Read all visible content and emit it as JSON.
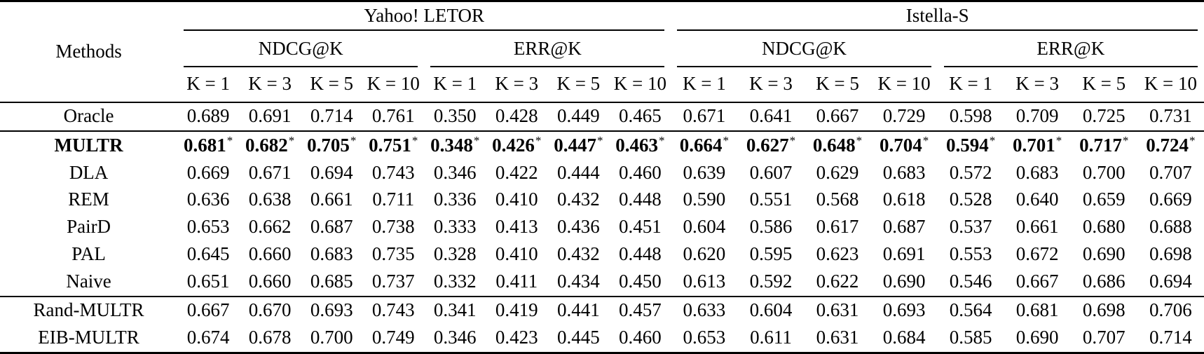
{
  "page": {
    "background_color": "#ffffff",
    "text_color": "#000000"
  },
  "table": {
    "corner_header": "Methods",
    "dataset_groups": [
      {
        "label": "Yahoo! LETOR",
        "metrics": [
          "NDCG@K",
          "ERR@K"
        ]
      },
      {
        "label": "Istella-S",
        "metrics": [
          "NDCG@K",
          "ERR@K"
        ]
      }
    ],
    "k_labels": [
      "K = 1",
      "K = 3",
      "K = 5",
      "K = 10"
    ],
    "rows": [
      {
        "method": "Oracle",
        "bold": false,
        "rule_after": true,
        "values": [
          "0.689",
          "0.691",
          "0.714",
          "0.761",
          "0.350",
          "0.428",
          "0.449",
          "0.465",
          "0.671",
          "0.641",
          "0.667",
          "0.729",
          "0.598",
          "0.709",
          "0.725",
          "0.731"
        ]
      },
      {
        "method": "MULTR",
        "bold": true,
        "rule_after": false,
        "mark": "*",
        "values": [
          "0.681",
          "0.682",
          "0.705",
          "0.751",
          "0.348",
          "0.426",
          "0.447",
          "0.463",
          "0.664",
          "0.627",
          "0.648",
          "0.704",
          "0.594",
          "0.701",
          "0.717",
          "0.724"
        ]
      },
      {
        "method": "DLA",
        "bold": false,
        "rule_after": false,
        "values": [
          "0.669",
          "0.671",
          "0.694",
          "0.743",
          "0.346",
          "0.422",
          "0.444",
          "0.460",
          "0.639",
          "0.607",
          "0.629",
          "0.683",
          "0.572",
          "0.683",
          "0.700",
          "0.707"
        ]
      },
      {
        "method": "REM",
        "bold": false,
        "rule_after": false,
        "values": [
          "0.636",
          "0.638",
          "0.661",
          "0.711",
          "0.336",
          "0.410",
          "0.432",
          "0.448",
          "0.590",
          "0.551",
          "0.568",
          "0.618",
          "0.528",
          "0.640",
          "0.659",
          "0.669"
        ]
      },
      {
        "method": "PairD",
        "bold": false,
        "rule_after": false,
        "values": [
          "0.653",
          "0.662",
          "0.687",
          "0.738",
          "0.333",
          "0.413",
          "0.436",
          "0.451",
          "0.604",
          "0.586",
          "0.617",
          "0.687",
          "0.537",
          "0.661",
          "0.680",
          "0.688"
        ]
      },
      {
        "method": "PAL",
        "bold": false,
        "rule_after": false,
        "values": [
          "0.645",
          "0.660",
          "0.683",
          "0.735",
          "0.328",
          "0.410",
          "0.432",
          "0.448",
          "0.620",
          "0.595",
          "0.623",
          "0.691",
          "0.553",
          "0.672",
          "0.690",
          "0.698"
        ]
      },
      {
        "method": "Naive",
        "bold": false,
        "rule_after": true,
        "values": [
          "0.651",
          "0.660",
          "0.685",
          "0.737",
          "0.332",
          "0.411",
          "0.434",
          "0.450",
          "0.613",
          "0.592",
          "0.622",
          "0.690",
          "0.546",
          "0.667",
          "0.686",
          "0.694"
        ]
      },
      {
        "method": "Rand-MULTR",
        "bold": false,
        "rule_after": false,
        "values": [
          "0.667",
          "0.670",
          "0.693",
          "0.743",
          "0.341",
          "0.419",
          "0.441",
          "0.457",
          "0.633",
          "0.604",
          "0.631",
          "0.693",
          "0.564",
          "0.681",
          "0.698",
          "0.706"
        ]
      },
      {
        "method": "EIB-MULTR",
        "bold": false,
        "rule_after": false,
        "values": [
          "0.674",
          "0.678",
          "0.700",
          "0.749",
          "0.346",
          "0.423",
          "0.445",
          "0.460",
          "0.653",
          "0.611",
          "0.631",
          "0.684",
          "0.585",
          "0.690",
          "0.707",
          "0.714"
        ]
      }
    ]
  }
}
